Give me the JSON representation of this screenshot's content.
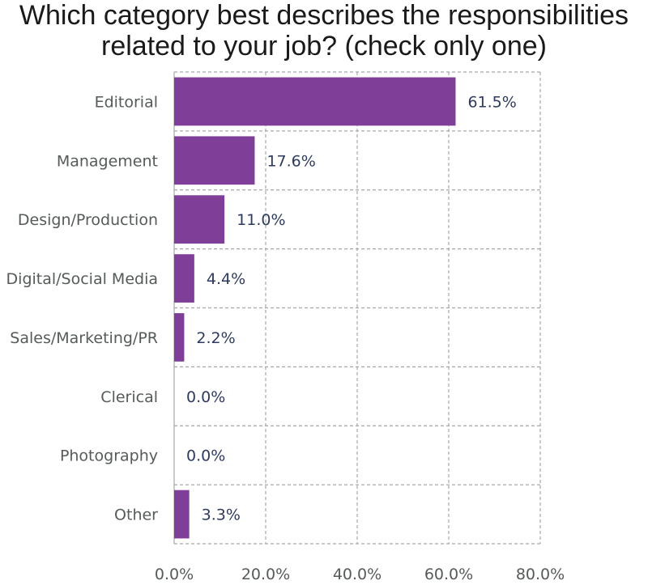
{
  "chart_data": {
    "type": "bar",
    "orientation": "horizontal",
    "title_lines": [
      "Which category best describes the responsibilities",
      "related to your job? (check only one)"
    ],
    "categories": [
      "Editorial",
      "Management",
      "Design/Production",
      "Digital/Social Media",
      "Sales/Marketing/PR",
      "Clerical",
      "Photography",
      "Other"
    ],
    "values": [
      61.5,
      17.6,
      11.0,
      4.4,
      2.2,
      0.0,
      0.0,
      3.3
    ],
    "value_labels": [
      "61.5%",
      "17.6%",
      "11.0%",
      "4.4%",
      "2.2%",
      "0.0%",
      "0.0%",
      "3.3%"
    ],
    "xlim": [
      0,
      80
    ],
    "x_ticks": [
      0,
      20,
      40,
      60,
      80
    ],
    "x_tick_labels": [
      "0.0%",
      "20.0%",
      "40.0%",
      "60.0%",
      "80.0%"
    ],
    "xlabel": "",
    "ylabel": "",
    "grid": true,
    "legend": "none",
    "bar_color": "#7f3f98"
  }
}
